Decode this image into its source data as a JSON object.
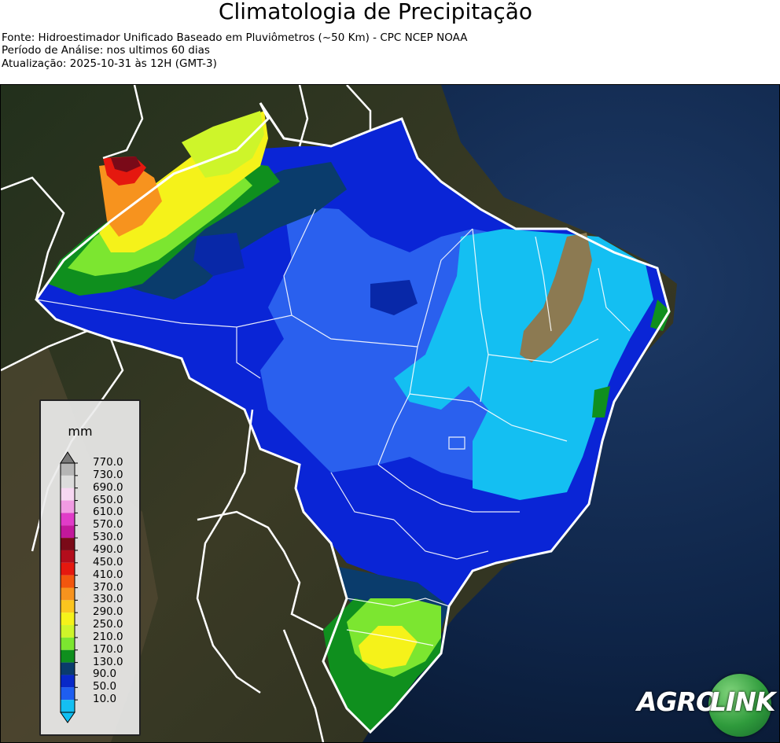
{
  "header": {
    "title": "Climatologia de Precipitação",
    "source_line": "Fonte: Hidroestimador Unificado Baseado em Pluviômetros (~50 Km) - CPC NCEP NOAA",
    "period_line": "Período de Análise: nos ultimos 60 dias",
    "update_line": "Atualização: 2025-10-31 às 12H (GMT-3)"
  },
  "legend": {
    "unit": "mm",
    "labels": [
      "770.0",
      "730.0",
      "690.0",
      "650.0",
      "610.0",
      "570.0",
      "530.0",
      "490.0",
      "450.0",
      "410.0",
      "370.0",
      "330.0",
      "290.0",
      "250.0",
      "210.0",
      "170.0",
      "130.0",
      "90.0",
      "50.0",
      "10.0"
    ],
    "colors": [
      "#b5b5b5",
      "#dcdcdc",
      "#f7d7f2",
      "#f19be3",
      "#e03cc8",
      "#c2189b",
      "#7a0a18",
      "#b30d1c",
      "#e5180f",
      "#f2560e",
      "#f7931e",
      "#fbc51f",
      "#f5f21a",
      "#cef52a",
      "#7ce630",
      "#0f8f1e",
      "#0a3c6c",
      "#0828c8",
      "#1e5ef0",
      "#14bff2"
    ],
    "top_color": "#7a7a7a",
    "bottom_color": "#10bff3"
  },
  "logo": {
    "text_left": "AGRO",
    "text_right": "LINK",
    "circle_color": "#2f9b3c"
  },
  "map": {
    "ocean_color": "#0b1a33",
    "land_color": "#2a3322",
    "border_color": "#ffffff"
  }
}
